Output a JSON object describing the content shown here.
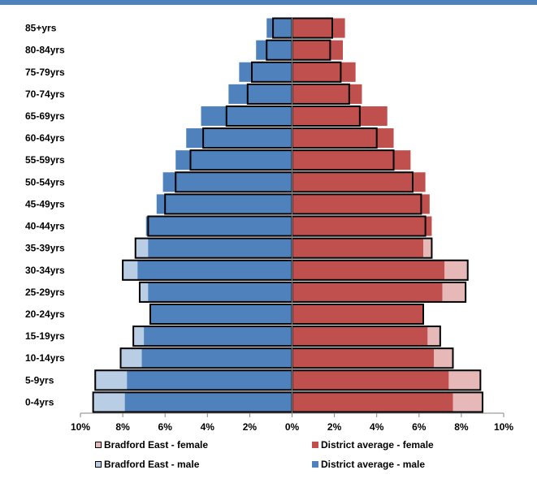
{
  "chart_data": {
    "type": "bar",
    "orientation": "horizontal",
    "categories": [
      "0-4yrs",
      "5-9yrs",
      "10-14yrs",
      "15-19yrs",
      "20-24yrs",
      "25-29yrs",
      "30-34yrs",
      "35-39yrs",
      "40-44yrs",
      "45-49yrs",
      "50-54yrs",
      "55-59yrs",
      "60-64yrs",
      "65-69yrs",
      "70-74yrs",
      "75-79yrs",
      "80-84yrs",
      "85+yrs"
    ],
    "series": [
      {
        "name": "District average - male",
        "style": "fill",
        "color": "#4f81bd",
        "values": [
          7.9,
          7.8,
          7.1,
          7.0,
          6.7,
          6.8,
          7.3,
          6.8,
          6.9,
          6.4,
          6.1,
          5.5,
          5.0,
          4.3,
          3.0,
          2.5,
          1.7,
          1.2
        ]
      },
      {
        "name": "District average - female",
        "style": "fill",
        "color": "#c0504d",
        "values": [
          7.6,
          7.4,
          6.7,
          6.4,
          6.2,
          7.1,
          7.2,
          6.2,
          6.6,
          6.5,
          6.3,
          5.6,
          4.8,
          4.5,
          3.3,
          3.0,
          2.4,
          2.5
        ]
      },
      {
        "name": "Bradford East - male",
        "style": "outline",
        "color": "#b9cde5",
        "values": [
          9.4,
          9.3,
          8.1,
          7.5,
          6.7,
          7.2,
          8.0,
          7.4,
          6.8,
          6.0,
          5.5,
          4.8,
          4.2,
          3.1,
          2.1,
          1.9,
          1.2,
          0.9
        ]
      },
      {
        "name": "Bradford East - female",
        "style": "outline",
        "color": "#e6b9b8",
        "values": [
          9.0,
          8.9,
          7.6,
          7.0,
          6.2,
          8.2,
          8.3,
          6.6,
          6.3,
          6.1,
          5.7,
          4.8,
          4.0,
          3.2,
          2.7,
          2.3,
          1.8,
          1.9
        ]
      }
    ],
    "x_ticks": [
      "10%",
      "8%",
      "6%",
      "4%",
      "2%",
      "0%",
      "2%",
      "4%",
      "6%",
      "8%",
      "10%"
    ],
    "xlim": [
      -10,
      10
    ],
    "xlabel": "",
    "ylabel": "",
    "grid": false,
    "legend": {
      "placement": "bottom",
      "items": [
        {
          "label": "Bradford East - female",
          "color": "#e6b9b8",
          "outline": true
        },
        {
          "label": "District average - female",
          "color": "#c0504d",
          "outline": false
        },
        {
          "label": "Bradford East - male",
          "color": "#b9cde5",
          "outline": true
        },
        {
          "label": "District average - male",
          "color": "#4f81bd",
          "outline": false
        }
      ]
    }
  }
}
